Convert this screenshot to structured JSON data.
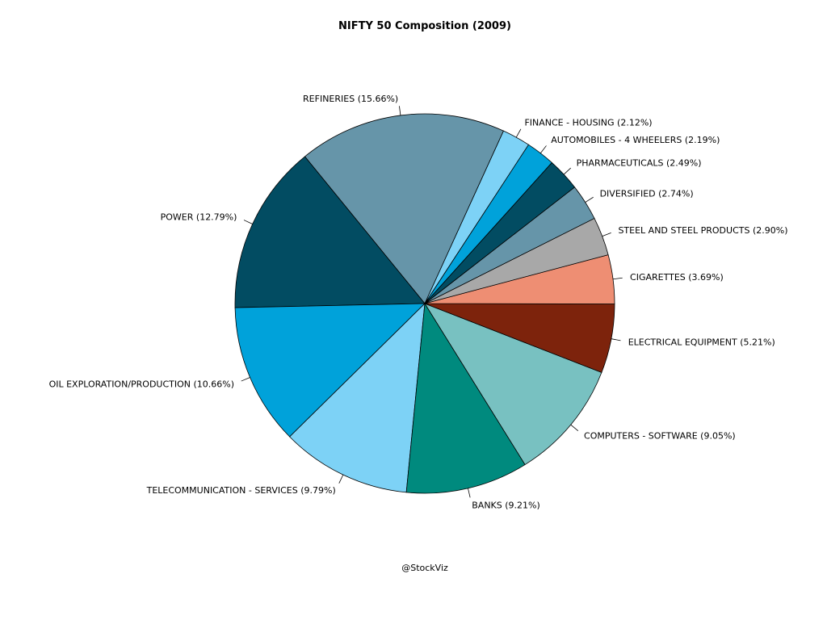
{
  "chart_data": {
    "type": "pie",
    "title": "NIFTY 50 Composition (2009)",
    "caption": "@StockViz",
    "slices": [
      {
        "label": "REFINERIES (15.66%)",
        "value": 15.66,
        "color": "#6695a9"
      },
      {
        "label": "POWER (12.79%)",
        "value": 12.79,
        "color": "#024c62"
      },
      {
        "label": "OIL EXPLORATION/PRODUCTION (10.66%)",
        "value": 10.66,
        "color": "#00a2da"
      },
      {
        "label": "TELECOMMUNICATION - SERVICES (9.79%)",
        "value": 9.79,
        "color": "#7dd2f6"
      },
      {
        "label": "BANKS (9.21%)",
        "value": 9.21,
        "color": "#008a7e"
      },
      {
        "label": "COMPUTERS - SOFTWARE (9.05%)",
        "value": 9.05,
        "color": "#78c1c1"
      },
      {
        "label": "ELECTRICAL EQUIPMENT (5.21%)",
        "value": 5.21,
        "color": "#7d230c"
      },
      {
        "label": "CIGARETTES (3.69%)",
        "value": 3.69,
        "color": "#ee8e73"
      },
      {
        "label": "STEEL AND STEEL PRODUCTS (2.90%)",
        "value": 2.9,
        "color": "#a8a8a8"
      },
      {
        "label": "DIVERSIFIED (2.74%)",
        "value": 2.74,
        "color": "#6695a9"
      },
      {
        "label": "PHARMACEUTICALS (2.49%)",
        "value": 2.49,
        "color": "#024c62"
      },
      {
        "label": "AUTOMOBILES - 4 WHEELERS (2.19%)",
        "value": 2.19,
        "color": "#00a2da"
      },
      {
        "label": "FINANCE - HOUSING (2.12%)",
        "value": 2.12,
        "color": "#7dd2f6"
      }
    ]
  }
}
